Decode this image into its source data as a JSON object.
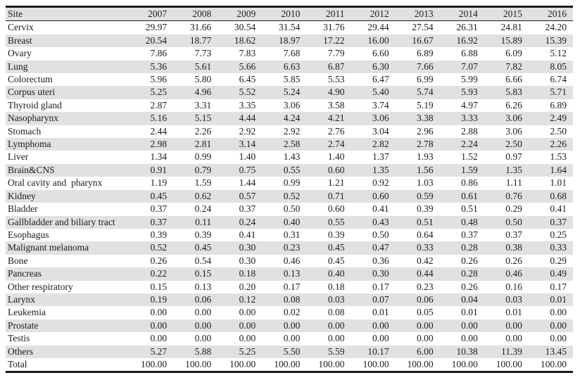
{
  "colors": {
    "row_shade": "#e1e1e1",
    "rule": "#1a1a1a",
    "text": "#1c1c1c"
  },
  "chart_data": {
    "type": "table",
    "columns": [
      "Site",
      "2007",
      "2008",
      "2009",
      "2010",
      "2011",
      "2012",
      "2013",
      "2014",
      "2015",
      "2016"
    ],
    "rows": [
      {
        "site": "Cervix",
        "values": [
          29.97,
          31.66,
          30.54,
          31.54,
          31.76,
          29.44,
          27.54,
          26.31,
          24.81,
          24.2
        ]
      },
      {
        "site": "Breast",
        "values": [
          20.54,
          18.77,
          18.62,
          18.97,
          17.22,
          16.0,
          16.67,
          16.92,
          15.89,
          15.39
        ]
      },
      {
        "site": "Ovary",
        "values": [
          7.86,
          7.73,
          7.83,
          7.68,
          7.79,
          6.6,
          6.89,
          6.88,
          6.09,
          5.12
        ]
      },
      {
        "site": "Lung",
        "values": [
          5.36,
          5.61,
          5.66,
          6.63,
          6.87,
          6.3,
          7.66,
          7.07,
          7.82,
          8.05
        ]
      },
      {
        "site": "Colorectum",
        "values": [
          5.96,
          5.8,
          6.45,
          5.85,
          5.53,
          6.47,
          6.99,
          5.99,
          6.66,
          6.74
        ]
      },
      {
        "site": "Corpus uteri",
        "values": [
          5.25,
          4.96,
          5.52,
          5.24,
          4.9,
          5.4,
          5.74,
          5.93,
          5.83,
          5.71
        ]
      },
      {
        "site": "Thyroid gland",
        "values": [
          2.87,
          3.31,
          3.35,
          3.06,
          3.58,
          3.74,
          5.19,
          4.97,
          6.26,
          6.89
        ]
      },
      {
        "site": "Nasopharynx",
        "values": [
          5.16,
          5.15,
          4.44,
          4.24,
          4.21,
          3.06,
          3.38,
          3.33,
          3.06,
          2.49
        ]
      },
      {
        "site": "Stomach",
        "values": [
          2.44,
          2.26,
          2.92,
          2.92,
          2.76,
          3.04,
          2.96,
          2.88,
          3.06,
          2.5
        ]
      },
      {
        "site": "Lymphoma",
        "values": [
          2.98,
          2.81,
          3.14,
          2.58,
          2.74,
          2.82,
          2.78,
          2.24,
          2.5,
          2.26
        ]
      },
      {
        "site": "Liver",
        "values": [
          1.34,
          0.99,
          1.4,
          1.43,
          1.4,
          1.37,
          1.93,
          1.52,
          0.97,
          1.53
        ]
      },
      {
        "site": "Brain&CNS",
        "values": [
          0.91,
          0.79,
          0.75,
          0.55,
          0.6,
          1.35,
          1.56,
          1.59,
          1.35,
          1.64
        ]
      },
      {
        "site": "Oral cavity and  pharynx",
        "values": [
          1.19,
          1.59,
          1.44,
          0.99,
          1.21,
          0.92,
          1.03,
          0.86,
          1.11,
          1.01
        ]
      },
      {
        "site": "Kidney",
        "values": [
          0.45,
          0.62,
          0.57,
          0.52,
          0.71,
          0.6,
          0.59,
          0.61,
          0.76,
          0.68
        ]
      },
      {
        "site": "Bladder",
        "values": [
          0.37,
          0.24,
          0.37,
          0.5,
          0.6,
          0.41,
          0.39,
          0.51,
          0.29,
          0.41
        ]
      },
      {
        "site": "Gallbladder and biliary tract",
        "values": [
          0.37,
          0.11,
          0.24,
          0.4,
          0.55,
          0.43,
          0.51,
          0.48,
          0.5,
          0.37
        ]
      },
      {
        "site": "Esophagus",
        "values": [
          0.39,
          0.39,
          0.41,
          0.31,
          0.39,
          0.5,
          0.64,
          0.37,
          0.37,
          0.25
        ]
      },
      {
        "site": "Malignant melanoma",
        "values": [
          0.52,
          0.45,
          0.3,
          0.23,
          0.45,
          0.47,
          0.33,
          0.28,
          0.38,
          0.33
        ]
      },
      {
        "site": "Bone",
        "values": [
          0.26,
          0.54,
          0.3,
          0.46,
          0.45,
          0.36,
          0.42,
          0.26,
          0.26,
          0.29
        ]
      },
      {
        "site": "Pancreas",
        "values": [
          0.22,
          0.15,
          0.18,
          0.13,
          0.4,
          0.3,
          0.44,
          0.28,
          0.46,
          0.49
        ]
      },
      {
        "site": "Other respiratory",
        "values": [
          0.15,
          0.13,
          0.2,
          0.17,
          0.18,
          0.17,
          0.23,
          0.26,
          0.16,
          0.17
        ]
      },
      {
        "site": "Larynx",
        "values": [
          0.19,
          0.06,
          0.12,
          0.08,
          0.03,
          0.07,
          0.06,
          0.04,
          0.03,
          0.01
        ]
      },
      {
        "site": "Leukemia",
        "values": [
          0.0,
          0.0,
          0.0,
          0.02,
          0.08,
          0.01,
          0.05,
          0.01,
          0.01,
          0.0
        ]
      },
      {
        "site": "Prostate",
        "values": [
          0.0,
          0.0,
          0.0,
          0.0,
          0.0,
          0.0,
          0.0,
          0.0,
          0.0,
          0.0
        ]
      },
      {
        "site": "Testis",
        "values": [
          0.0,
          0.0,
          0.0,
          0.0,
          0.0,
          0.0,
          0.0,
          0.0,
          0.0,
          0.0
        ]
      },
      {
        "site": "Others",
        "values": [
          5.27,
          5.88,
          5.25,
          5.5,
          5.59,
          10.17,
          6.0,
          10.38,
          11.39,
          13.45
        ]
      },
      {
        "site": "Total",
        "values": [
          100.0,
          100.0,
          100.0,
          100.0,
          100.0,
          100.0,
          100.0,
          100.0,
          100.0,
          100.0
        ]
      }
    ]
  }
}
